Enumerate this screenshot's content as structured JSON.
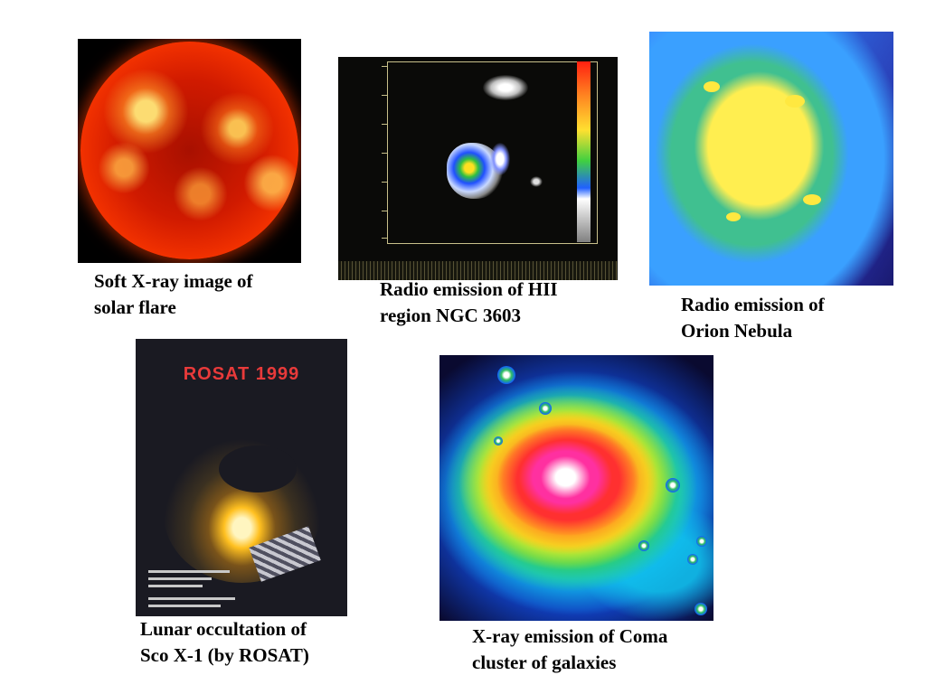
{
  "images": {
    "solar": {
      "caption": [
        "Soft X-ray image of",
        "solar flare"
      ]
    },
    "ngc3603": {
      "caption": [
        "Radio emission of HII",
        "region NGC 3603"
      ]
    },
    "orion": {
      "caption": [
        "Radio emission of",
        "Orion Nebula"
      ]
    },
    "rosat": {
      "caption": [
        "Lunar occultation of",
        "Sco X-1 (by ROSAT)"
      ],
      "poster_title": "ROSAT 1999"
    },
    "coma": {
      "caption": [
        "X-ray emission of Coma",
        "cluster of galaxies"
      ]
    }
  },
  "colors": {
    "background": "#ffffff",
    "caption_text": "#000000",
    "rosat_title": "#e83a3a"
  }
}
